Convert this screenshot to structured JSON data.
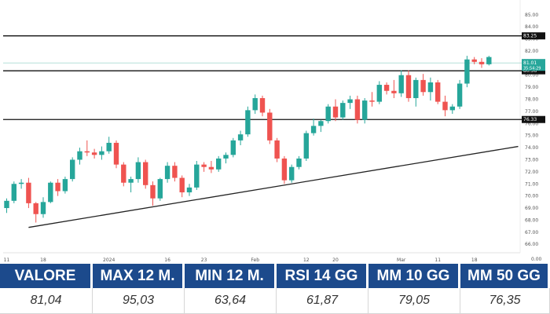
{
  "chart_data": {
    "type": "candlestick",
    "title": "",
    "xlabel": "",
    "ylabel": "",
    "ylim": [
      65.3,
      85.7
    ],
    "y_ticks": [
      "66.00",
      "67.00",
      "68.00",
      "69.00",
      "70.00",
      "71.00",
      "72.00",
      "73.00",
      "74.00",
      "75.00",
      "76.00",
      "77.00",
      "78.00",
      "79.00",
      "80.00",
      "81.00",
      "82.00",
      "83.00",
      "84.00",
      "85.00"
    ],
    "x_ticks": [
      {
        "index": 0,
        "label": "11"
      },
      {
        "index": 5,
        "label": "18"
      },
      {
        "index": 14,
        "label": "2024"
      },
      {
        "index": 22,
        "label": "16"
      },
      {
        "index": 27,
        "label": "23"
      },
      {
        "index": 34,
        "label": "Feb"
      },
      {
        "index": 41,
        "label": "12"
      },
      {
        "index": 45,
        "label": "20"
      },
      {
        "index": 54,
        "label": "Mar"
      },
      {
        "index": 59,
        "label": "11"
      },
      {
        "index": 64,
        "label": "18"
      }
    ],
    "candles": [
      [
        69.0,
        69.8,
        68.6,
        69.6
      ],
      [
        69.6,
        71.2,
        69.4,
        71.0
      ],
      [
        71.0,
        71.4,
        70.6,
        71.1
      ],
      [
        71.1,
        71.5,
        69.0,
        69.4
      ],
      [
        69.4,
        69.5,
        67.8,
        68.5
      ],
      [
        68.5,
        69.9,
        68.2,
        69.5
      ],
      [
        69.5,
        71.2,
        69.4,
        71.1
      ],
      [
        71.1,
        71.4,
        70.0,
        70.4
      ],
      [
        70.4,
        71.6,
        70.2,
        71.4
      ],
      [
        71.4,
        73.2,
        71.2,
        73.0
      ],
      [
        73.0,
        74.0,
        72.6,
        73.7
      ],
      [
        73.7,
        74.6,
        73.3,
        73.6
      ],
      [
        73.6,
        73.9,
        73.1,
        73.4
      ],
      [
        73.4,
        74.1,
        73.0,
        73.7
      ],
      [
        73.7,
        74.9,
        73.5,
        74.4
      ],
      [
        74.4,
        74.6,
        72.3,
        72.6
      ],
      [
        72.6,
        72.8,
        70.8,
        71.1
      ],
      [
        71.1,
        71.6,
        70.3,
        71.4
      ],
      [
        71.4,
        73.2,
        71.1,
        72.8
      ],
      [
        72.8,
        73.0,
        70.6,
        70.9
      ],
      [
        70.9,
        71.2,
        69.2,
        69.8
      ],
      [
        69.8,
        71.5,
        69.6,
        71.4
      ],
      [
        71.4,
        72.8,
        71.1,
        72.5
      ],
      [
        72.5,
        72.8,
        71.2,
        71.5
      ],
      [
        71.5,
        71.7,
        69.9,
        70.3
      ],
      [
        70.3,
        71.0,
        70.0,
        70.7
      ],
      [
        70.7,
        72.9,
        70.5,
        72.6
      ],
      [
        72.6,
        72.8,
        72.0,
        72.4
      ],
      [
        72.4,
        72.9,
        71.9,
        72.2
      ],
      [
        72.2,
        73.3,
        72.0,
        73.1
      ],
      [
        73.1,
        73.6,
        72.7,
        73.4
      ],
      [
        73.4,
        74.8,
        73.2,
        74.6
      ],
      [
        74.6,
        75.4,
        74.2,
        75.1
      ],
      [
        75.1,
        77.4,
        74.9,
        77.1
      ],
      [
        77.1,
        78.4,
        76.8,
        78.1
      ],
      [
        78.1,
        78.3,
        76.6,
        76.9
      ],
      [
        76.9,
        77.2,
        74.3,
        74.6
      ],
      [
        74.6,
        74.8,
        72.8,
        73.1
      ],
      [
        73.1,
        73.3,
        71.0,
        71.3
      ],
      [
        71.3,
        72.6,
        71.1,
        72.4
      ],
      [
        72.4,
        73.3,
        72.2,
        73.1
      ],
      [
        73.1,
        75.4,
        72.9,
        75.2
      ],
      [
        75.2,
        76.4,
        75.0,
        75.8
      ],
      [
        75.8,
        76.3,
        75.3,
        76.2
      ],
      [
        76.2,
        77.6,
        76.0,
        77.4
      ],
      [
        77.4,
        78.0,
        76.2,
        76.5
      ],
      [
        76.5,
        77.9,
        76.3,
        77.7
      ],
      [
        77.7,
        78.3,
        77.2,
        78.0
      ],
      [
        78.0,
        78.3,
        76.0,
        76.3
      ],
      [
        76.3,
        78.1,
        76.0,
        77.9
      ],
      [
        77.9,
        78.6,
        77.4,
        77.8
      ],
      [
        77.8,
        79.5,
        77.6,
        79.2
      ],
      [
        79.2,
        79.4,
        78.4,
        78.7
      ],
      [
        78.7,
        79.6,
        78.1,
        78.5
      ],
      [
        78.5,
        80.4,
        78.2,
        80.0
      ],
      [
        80.0,
        80.4,
        77.8,
        78.1
      ],
      [
        78.1,
        79.8,
        77.4,
        79.6
      ],
      [
        79.6,
        80.1,
        78.3,
        78.6
      ],
      [
        78.6,
        79.8,
        77.9,
        79.4
      ],
      [
        79.4,
        79.6,
        77.6,
        77.8
      ],
      [
        77.8,
        78.3,
        76.6,
        77.1
      ],
      [
        77.1,
        77.6,
        76.8,
        77.4
      ],
      [
        77.4,
        79.6,
        77.2,
        79.3
      ],
      [
        79.3,
        81.6,
        79.0,
        81.3
      ],
      [
        81.3,
        81.5,
        80.9,
        81.1
      ],
      [
        81.1,
        81.4,
        80.6,
        80.9
      ],
      [
        80.9,
        81.6,
        80.8,
        81.5
      ]
    ],
    "horizontal_lines": [
      {
        "value": 83.25,
        "label": "83.25"
      },
      {
        "value": 80.36,
        "label": "80.36"
      },
      {
        "value": 76.33,
        "label": "76.33"
      }
    ],
    "trendline": {
      "from": {
        "index": 3,
        "value": 67.4
      },
      "to": {
        "index": 70,
        "value": 74.1
      }
    },
    "last_price": {
      "value": 81.01,
      "label": "81.01",
      "sublabel": "35:54:29"
    },
    "extra_tick": "0.00"
  },
  "stats": {
    "headers": [
      "VALORE",
      "MAX 12 M.",
      "MIN 12 M.",
      "RSI 14 GG",
      "MM 10 GG",
      "MM 50 GG"
    ],
    "values": [
      "81,04",
      "95,03",
      "63,64",
      "61,87",
      "79,05",
      "76,35"
    ]
  },
  "colors": {
    "up": "#26a69a",
    "down": "#ef5350",
    "header_bg": "#1c4a8c",
    "last_price": "#26a69a"
  }
}
